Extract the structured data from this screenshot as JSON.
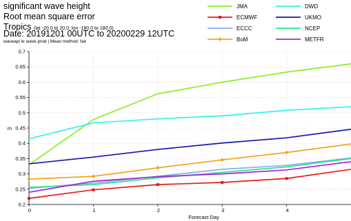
{
  "header": {
    "line1": "significant wave height",
    "line2": "Root mean square error",
    "region_name": "Tropics",
    "region_bounds": "(lat -20.0 to 20.0, lon -180.0 to 180.0)",
    "date_range": "Date: 20191201 00UTC to 20200229 12UTC",
    "meta": "waveapi le wave prod | Mean method: fair"
  },
  "chart_data": {
    "type": "line",
    "title": "significant wave height",
    "xlabel": "Forecast Day",
    "ylabel": "m",
    "xlim": [
      0,
      5
    ],
    "ylim": [
      0.2,
      0.7
    ],
    "xticks": [
      0,
      1,
      2,
      3,
      4
    ],
    "yticks": [
      0.2,
      0.25,
      0.3,
      0.35,
      0.4,
      0.45,
      0.5,
      0.55,
      0.6,
      0.65,
      0.7
    ],
    "x": [
      0,
      1,
      2,
      3,
      4,
      5
    ],
    "grid": true,
    "legend_position": "top-right",
    "series": [
      {
        "name": "JMA",
        "color": "#88f020",
        "marker": "none",
        "values": [
          0.33,
          0.478,
          0.562,
          0.6,
          0.633,
          0.66
        ]
      },
      {
        "name": "DWD",
        "color": "#33f0f0",
        "marker": "none",
        "values": [
          0.415,
          0.467,
          0.48,
          0.49,
          0.508,
          0.52
        ]
      },
      {
        "name": "ECMWF",
        "color": "#e41a1a",
        "marker": "square",
        "values": [
          0.22,
          0.248,
          0.265,
          0.272,
          0.285,
          0.315
        ]
      },
      {
        "name": "UKMO",
        "color": "#1515b0",
        "marker": "none",
        "values": [
          0.333,
          0.355,
          0.38,
          0.401,
          0.418,
          0.446
        ]
      },
      {
        "name": "ECCC",
        "color": "#88a8f0",
        "marker": "none",
        "values": [
          0.253,
          0.27,
          0.292,
          0.315,
          0.328,
          0.352
        ]
      },
      {
        "name": "NCEP",
        "color": "#22e88a",
        "marker": "none",
        "values": [
          0.256,
          0.265,
          0.287,
          0.305,
          0.323,
          0.35
        ]
      },
      {
        "name": "BoM",
        "color": "#f4a21c",
        "marker": "diamond",
        "values": [
          0.283,
          0.292,
          0.32,
          0.346,
          0.37,
          0.398
        ]
      },
      {
        "name": "METFR",
        "color": "#b020d8",
        "marker": "none",
        "values": [
          0.24,
          0.276,
          0.291,
          0.3,
          0.313,
          0.34
        ]
      }
    ]
  }
}
